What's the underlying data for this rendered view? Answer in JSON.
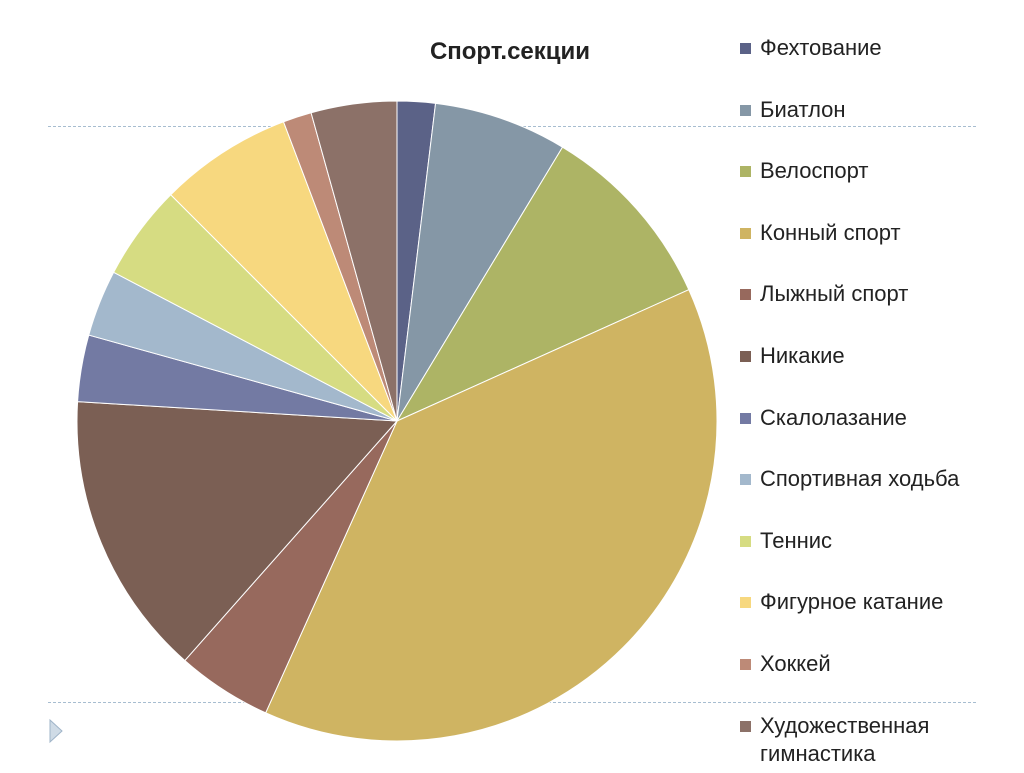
{
  "chart_data": {
    "type": "pie",
    "title": "Спорт.секции",
    "legend_position": "right",
    "start_angle_deg": 0,
    "direction": "clockwise",
    "slices": [
      {
        "label": "Фехтование",
        "value": 2,
        "color": "#5b6287"
      },
      {
        "label": "Биатлон",
        "value": 7,
        "color": "#8597a6"
      },
      {
        "label": "Велоспорт",
        "value": 10,
        "color": "#adb465"
      },
      {
        "label": "Конный спорт",
        "value": 40,
        "color": "#cfb462"
      },
      {
        "label": "Лыжный спорт",
        "value": 5,
        "color": "#97695d"
      },
      {
        "label": "Никакие",
        "value": 15,
        "color": "#7b5f54"
      },
      {
        "label": "Скалолазание",
        "value": 3.5,
        "color": "#737aa3"
      },
      {
        "label": "Спортивная ходьба",
        "value": 3.5,
        "color": "#a3b8cc"
      },
      {
        "label": "Теннис",
        "value": 5,
        "color": "#d6dc82"
      },
      {
        "label": "Фигурное катание",
        "value": 7,
        "color": "#f7d87f"
      },
      {
        "label": "Хоккей",
        "value": 1.5,
        "color": "#bd8a77"
      },
      {
        "label": "Художественная гимнастика",
        "value": 4.5,
        "color": "#8c7168"
      }
    ]
  },
  "icons": {
    "nav": "triangle-right-icon"
  }
}
